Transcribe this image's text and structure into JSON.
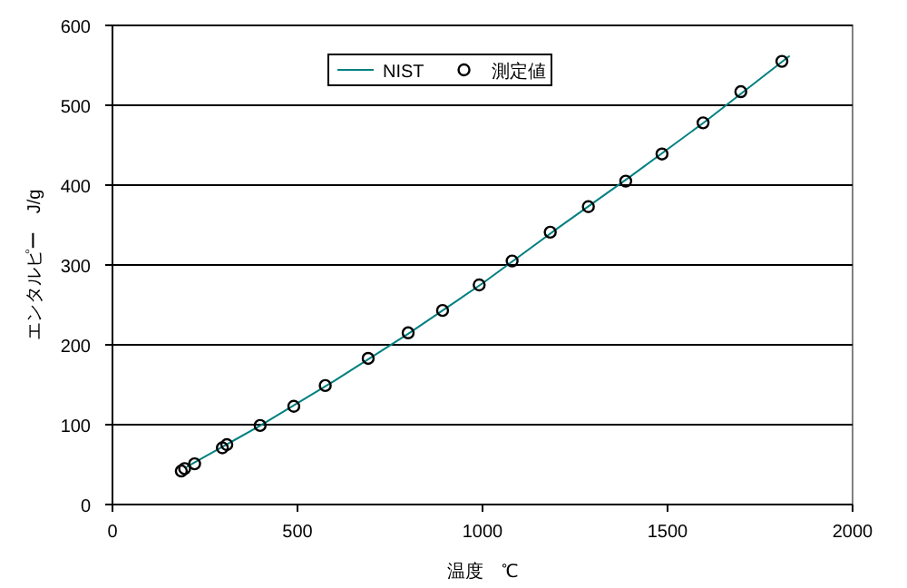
{
  "chart_data": {
    "type": "scatter",
    "xlabel": "温度　℃",
    "ylabel": "エンタルピー　J/g",
    "xlim": [
      0,
      2000
    ],
    "ylim": [
      0,
      600
    ],
    "xticks": [
      0,
      500,
      1000,
      1500,
      2000
    ],
    "yticks": [
      0,
      100,
      200,
      300,
      400,
      500,
      600
    ],
    "grid": "y",
    "legend": "top",
    "series": [
      {
        "name": "NIST",
        "type": "line",
        "color": "#008080",
        "marker": "none",
        "line_style": "solid",
        "x": [
          200,
          400,
          600,
          800,
          1000,
          1200,
          1400,
          1600,
          1830
        ],
        "values": [
          47,
          99,
          155,
          214,
          277,
          345,
          411,
          479,
          562
        ]
      },
      {
        "name": "測定値",
        "color": "#000000",
        "marker": "circle",
        "x": [
          186,
          195,
          222,
          297,
          309,
          399,
          490,
          575,
          691,
          799,
          892,
          991,
          1080,
          1183,
          1286,
          1387,
          1485,
          1596,
          1698,
          1809
        ],
        "values": [
          42,
          45,
          51,
          71,
          75,
          99,
          123,
          149,
          183,
          215,
          243,
          275,
          305,
          341,
          373,
          405,
          439,
          478,
          517,
          555
        ]
      }
    ]
  }
}
